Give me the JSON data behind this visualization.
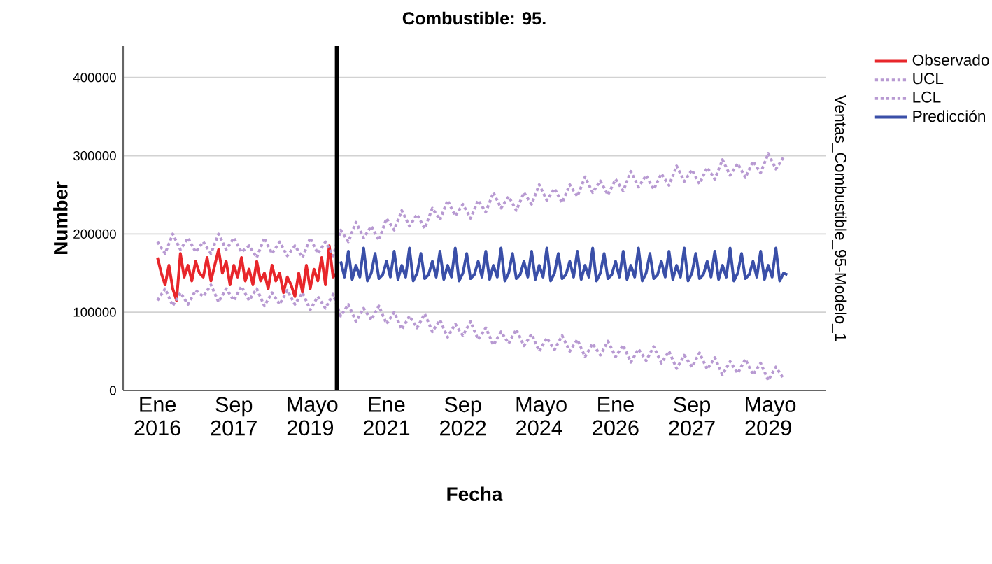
{
  "chart_data": {
    "type": "line",
    "title": "Combustible: 95.",
    "xlabel": "Fecha",
    "ylabel": "Number",
    "annotations": [
      "Ventas_Combustible_95-Modelo_1"
    ],
    "xlim": [
      "2015-04",
      "2030-08"
    ],
    "ylim": [
      0,
      440000
    ],
    "xticks": [
      {
        "value": "2016-01",
        "label": "Ene 2016"
      },
      {
        "value": "2017-09",
        "label": "Sep 2017"
      },
      {
        "value": "2019-05",
        "label": "Mayo 2019"
      },
      {
        "value": "2021-01",
        "label": "Ene 2021"
      },
      {
        "value": "2022-09",
        "label": "Sep 2022"
      },
      {
        "value": "2024-05",
        "label": "Mayo 2024"
      },
      {
        "value": "2026-01",
        "label": "Ene 2026"
      },
      {
        "value": "2027-09",
        "label": "Sep 2027"
      },
      {
        "value": "2029-05",
        "label": "Mayo 2029"
      }
    ],
    "yticks": [
      0,
      100000,
      200000,
      300000,
      400000
    ],
    "grid": "y",
    "legend": "top right",
    "marker": "none",
    "ref_lines": [
      {
        "axis": "x",
        "value": "2019-12",
        "color": "#000000",
        "line_style": "solid"
      }
    ],
    "series": [
      {
        "name": "Observado",
        "color": "#e8262b",
        "line_style": "solid",
        "x": [
          "2016-01",
          "2016-02",
          "2016-03",
          "2016-04",
          "2016-05",
          "2016-06",
          "2016-07",
          "2016-08",
          "2016-09",
          "2016-10",
          "2016-11",
          "2016-12",
          "2017-01",
          "2017-02",
          "2017-03",
          "2017-04",
          "2017-05",
          "2017-06",
          "2017-07",
          "2017-08",
          "2017-09",
          "2017-10",
          "2017-11",
          "2017-12",
          "2018-01",
          "2018-02",
          "2018-03",
          "2018-04",
          "2018-05",
          "2018-06",
          "2018-07",
          "2018-08",
          "2018-09",
          "2018-10",
          "2018-11",
          "2018-12",
          "2019-01",
          "2019-02",
          "2019-03",
          "2019-04",
          "2019-05",
          "2019-06",
          "2019-07",
          "2019-08",
          "2019-09",
          "2019-10",
          "2019-11",
          "2019-12"
        ],
        "values": [
          170000,
          150000,
          135000,
          160000,
          130000,
          115000,
          175000,
          145000,
          160000,
          140000,
          165000,
          150000,
          145000,
          170000,
          140000,
          160000,
          180000,
          150000,
          165000,
          135000,
          160000,
          145000,
          170000,
          140000,
          155000,
          135000,
          165000,
          140000,
          150000,
          130000,
          160000,
          140000,
          150000,
          125000,
          145000,
          135000,
          120000,
          150000,
          125000,
          160000,
          130000,
          155000,
          140000,
          170000,
          135000,
          185000,
          145000,
          150000
        ]
      },
      {
        "name": "UCL",
        "color": "#b89ad2",
        "line_style": "dotted",
        "x": [
          "2016-01",
          "2016-03",
          "2016-05",
          "2016-07",
          "2016-09",
          "2016-11",
          "2017-01",
          "2017-03",
          "2017-05",
          "2017-07",
          "2017-09",
          "2017-11",
          "2018-01",
          "2018-03",
          "2018-05",
          "2018-07",
          "2018-09",
          "2018-11",
          "2019-01",
          "2019-03",
          "2019-05",
          "2019-07",
          "2019-09",
          "2019-11",
          "2020-01",
          "2020-03",
          "2020-05",
          "2020-07",
          "2020-09",
          "2020-11",
          "2021-01",
          "2021-03",
          "2021-05",
          "2021-07",
          "2021-09",
          "2021-11",
          "2022-01",
          "2022-03",
          "2022-05",
          "2022-07",
          "2022-09",
          "2022-11",
          "2023-01",
          "2023-03",
          "2023-05",
          "2023-07",
          "2023-09",
          "2023-11",
          "2024-01",
          "2024-03",
          "2024-05",
          "2024-07",
          "2024-09",
          "2024-11",
          "2025-01",
          "2025-03",
          "2025-05",
          "2025-07",
          "2025-09",
          "2025-11",
          "2026-01",
          "2026-03",
          "2026-05",
          "2026-07",
          "2026-09",
          "2026-11",
          "2027-01",
          "2027-03",
          "2027-05",
          "2027-07",
          "2027-09",
          "2027-11",
          "2028-01",
          "2028-03",
          "2028-05",
          "2028-07",
          "2028-09",
          "2028-11",
          "2029-01",
          "2029-03",
          "2029-05",
          "2029-07",
          "2029-09"
        ],
        "values": [
          190000,
          175000,
          200000,
          180000,
          195000,
          177000,
          190000,
          175000,
          200000,
          180000,
          195000,
          177000,
          185000,
          170000,
          195000,
          175000,
          190000,
          172000,
          185000,
          170000,
          195000,
          175000,
          190000,
          172000,
          205000,
          190000,
          215000,
          195000,
          210000,
          192000,
          220000,
          205000,
          230000,
          210000,
          225000,
          207000,
          233000,
          218000,
          243000,
          223000,
          238000,
          220000,
          243000,
          228000,
          253000,
          233000,
          248000,
          230000,
          253000,
          238000,
          263000,
          243000,
          258000,
          240000,
          263000,
          248000,
          273000,
          253000,
          268000,
          250000,
          270000,
          255000,
          280000,
          260000,
          275000,
          257000,
          277000,
          262000,
          287000,
          267000,
          282000,
          264000,
          285000,
          270000,
          295000,
          275000,
          290000,
          272000,
          293000,
          278000,
          303000,
          283000,
          298000
        ]
      },
      {
        "name": "LCL",
        "color": "#b89ad2",
        "line_style": "dotted",
        "x": [
          "2016-01",
          "2016-03",
          "2016-05",
          "2016-07",
          "2016-09",
          "2016-11",
          "2017-01",
          "2017-03",
          "2017-05",
          "2017-07",
          "2017-09",
          "2017-11",
          "2018-01",
          "2018-03",
          "2018-05",
          "2018-07",
          "2018-09",
          "2018-11",
          "2019-01",
          "2019-03",
          "2019-05",
          "2019-07",
          "2019-09",
          "2019-11",
          "2020-01",
          "2020-03",
          "2020-05",
          "2020-07",
          "2020-09",
          "2020-11",
          "2021-01",
          "2021-03",
          "2021-05",
          "2021-07",
          "2021-09",
          "2021-11",
          "2022-01",
          "2022-03",
          "2022-05",
          "2022-07",
          "2022-09",
          "2022-11",
          "2023-01",
          "2023-03",
          "2023-05",
          "2023-07",
          "2023-09",
          "2023-11",
          "2024-01",
          "2024-03",
          "2024-05",
          "2024-07",
          "2024-09",
          "2024-11",
          "2025-01",
          "2025-03",
          "2025-05",
          "2025-07",
          "2025-09",
          "2025-11",
          "2026-01",
          "2026-03",
          "2026-05",
          "2026-07",
          "2026-09",
          "2026-11",
          "2027-01",
          "2027-03",
          "2027-05",
          "2027-07",
          "2027-09",
          "2027-11",
          "2028-01",
          "2028-03",
          "2028-05",
          "2028-07",
          "2028-09",
          "2028-11",
          "2029-01",
          "2029-03",
          "2029-05",
          "2029-07",
          "2029-09"
        ],
        "values": [
          115000,
          130000,
          108000,
          125000,
          110000,
          128000,
          120000,
          135000,
          113000,
          130000,
          115000,
          133000,
          115000,
          130000,
          108000,
          125000,
          110000,
          128000,
          110000,
          125000,
          103000,
          120000,
          105000,
          123000,
          95000,
          110000,
          88000,
          105000,
          90000,
          108000,
          85000,
          100000,
          78000,
          95000,
          80000,
          98000,
          75000,
          90000,
          68000,
          85000,
          70000,
          88000,
          65000,
          80000,
          58000,
          75000,
          60000,
          78000,
          57000,
          72000,
          50000,
          67000,
          52000,
          70000,
          50000,
          65000,
          43000,
          60000,
          45000,
          63000,
          43000,
          58000,
          36000,
          53000,
          38000,
          56000,
          35000,
          50000,
          28000,
          45000,
          30000,
          48000,
          27000,
          42000,
          20000,
          37000,
          22000,
          40000,
          20000,
          35000,
          13000,
          30000,
          15000
        ]
      },
      {
        "name": "Predicción",
        "color": "#3a4fa8",
        "line_style": "solid",
        "x": [
          "2020-01",
          "2020-02",
          "2020-03",
          "2020-04",
          "2020-05",
          "2020-06",
          "2020-07",
          "2020-08",
          "2020-09",
          "2020-10",
          "2020-11",
          "2020-12",
          "2021-01",
          "2021-02",
          "2021-03",
          "2021-04",
          "2021-05",
          "2021-06",
          "2021-07",
          "2021-08",
          "2021-09",
          "2021-10",
          "2021-11",
          "2021-12",
          "2022-01",
          "2022-02",
          "2022-03",
          "2022-04",
          "2022-05",
          "2022-06",
          "2022-07",
          "2022-08",
          "2022-09",
          "2022-10",
          "2022-11",
          "2022-12",
          "2023-01",
          "2023-02",
          "2023-03",
          "2023-04",
          "2023-05",
          "2023-06",
          "2023-07",
          "2023-08",
          "2023-09",
          "2023-10",
          "2023-11",
          "2023-12",
          "2024-01",
          "2024-02",
          "2024-03",
          "2024-04",
          "2024-05",
          "2024-06",
          "2024-07",
          "2024-08",
          "2024-09",
          "2024-10",
          "2024-11",
          "2024-12",
          "2025-01",
          "2025-02",
          "2025-03",
          "2025-04",
          "2025-05",
          "2025-06",
          "2025-07",
          "2025-08",
          "2025-09",
          "2025-10",
          "2025-11",
          "2025-12",
          "2026-01",
          "2026-02",
          "2026-03",
          "2026-04",
          "2026-05",
          "2026-06",
          "2026-07",
          "2026-08",
          "2026-09",
          "2026-10",
          "2026-11",
          "2026-12",
          "2027-01",
          "2027-02",
          "2027-03",
          "2027-04",
          "2027-05",
          "2027-06",
          "2027-07",
          "2027-08",
          "2027-09",
          "2027-10",
          "2027-11",
          "2027-12",
          "2028-01",
          "2028-02",
          "2028-03",
          "2028-04",
          "2028-05",
          "2028-06",
          "2028-07",
          "2028-08",
          "2028-09",
          "2028-10",
          "2028-11",
          "2028-12",
          "2029-01",
          "2029-02",
          "2029-03",
          "2029-04",
          "2029-05",
          "2029-06",
          "2029-07",
          "2029-08",
          "2029-09",
          "2029-10"
        ],
        "values": [
          165000,
          145000,
          178000,
          142000,
          160000,
          145000,
          182000,
          140000,
          150000,
          175000,
          143000,
          148000,
          165000,
          145000,
          178000,
          142000,
          160000,
          145000,
          182000,
          140000,
          150000,
          175000,
          143000,
          148000,
          165000,
          145000,
          178000,
          142000,
          160000,
          145000,
          182000,
          140000,
          150000,
          175000,
          143000,
          148000,
          165000,
          145000,
          178000,
          142000,
          160000,
          145000,
          182000,
          140000,
          150000,
          175000,
          143000,
          148000,
          165000,
          145000,
          178000,
          142000,
          160000,
          145000,
          182000,
          140000,
          150000,
          175000,
          143000,
          148000,
          165000,
          145000,
          178000,
          142000,
          160000,
          145000,
          182000,
          140000,
          150000,
          175000,
          143000,
          148000,
          165000,
          145000,
          178000,
          142000,
          160000,
          145000,
          182000,
          140000,
          150000,
          175000,
          143000,
          148000,
          165000,
          145000,
          178000,
          142000,
          160000,
          145000,
          182000,
          140000,
          150000,
          175000,
          143000,
          148000,
          165000,
          145000,
          178000,
          142000,
          160000,
          145000,
          182000,
          140000,
          150000,
          175000,
          143000,
          148000,
          165000,
          145000,
          178000,
          142000,
          160000,
          145000,
          182000,
          140000,
          150000,
          148000
        ]
      }
    ]
  }
}
